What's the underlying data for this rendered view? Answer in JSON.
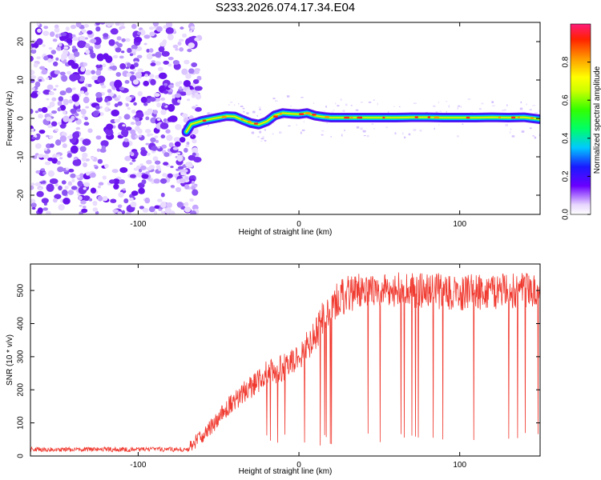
{
  "title": "S233.2026.074.17.34.E04",
  "chart_data": [
    {
      "type": "heatmap",
      "xlabel": "Height of straight line (km)",
      "ylabel": "Frequency (Hz)",
      "xlim": [
        -167,
        150
      ],
      "ylim": [
        -25,
        25
      ],
      "xticks": [
        -100,
        0,
        100
      ],
      "yticks": [
        -20,
        -10,
        0,
        10,
        20
      ],
      "noise_region_x": [
        -167,
        -68
      ],
      "signal_trace": {
        "x": [
          -70,
          -67,
          -60,
          -50,
          -45,
          -40,
          -35,
          -30,
          -25,
          -20,
          -15,
          -10,
          -5,
          0,
          5,
          10,
          15,
          20,
          30,
          40,
          50,
          60,
          70,
          80,
          90,
          100,
          110,
          120,
          130,
          140,
          150
        ],
        "y": [
          -3.5,
          -1.5,
          -0.6,
          0.2,
          0.6,
          0.5,
          -0.4,
          -1.2,
          -1.6,
          -0.8,
          0.8,
          1.4,
          1.2,
          1.1,
          1.4,
          0.7,
          0.4,
          0.2,
          0.2,
          0.2,
          0.2,
          0.2,
          0.3,
          0.3,
          0.2,
          0.2,
          0.2,
          0.3,
          0.2,
          0.3,
          -0.2
        ]
      },
      "colorbar": {
        "label": "Normalized spectral amplitude",
        "range": [
          0,
          1
        ],
        "ticks": [
          0.0,
          0.2,
          0.4,
          0.6,
          0.8
        ],
        "tick_labels": [
          "0.0",
          "0.2",
          "0.4",
          "0.6",
          "0.8"
        ]
      }
    },
    {
      "type": "line",
      "xlabel": "Height of straight line (km)",
      "ylabel": "SNR (10 * v/v)",
      "xlim": [
        -167,
        150
      ],
      "ylim": [
        0,
        580
      ],
      "xticks": [
        -100,
        0,
        100
      ],
      "yticks": [
        0,
        100,
        200,
        300,
        400,
        500
      ],
      "color": "#f03a30",
      "envelope": {
        "x": [
          -167,
          -100,
          -70,
          -60,
          -50,
          -40,
          -30,
          -20,
          -10,
          0,
          10,
          15,
          20,
          30,
          40,
          60,
          80,
          100,
          120,
          140,
          150
        ],
        "y": [
          15,
          18,
          20,
          60,
          115,
          170,
          210,
          250,
          265,
          300,
          360,
          420,
          460,
          490,
          500,
          505,
          500,
          495,
          495,
          500,
          510
        ]
      },
      "dropout_floor": 30
    }
  ]
}
